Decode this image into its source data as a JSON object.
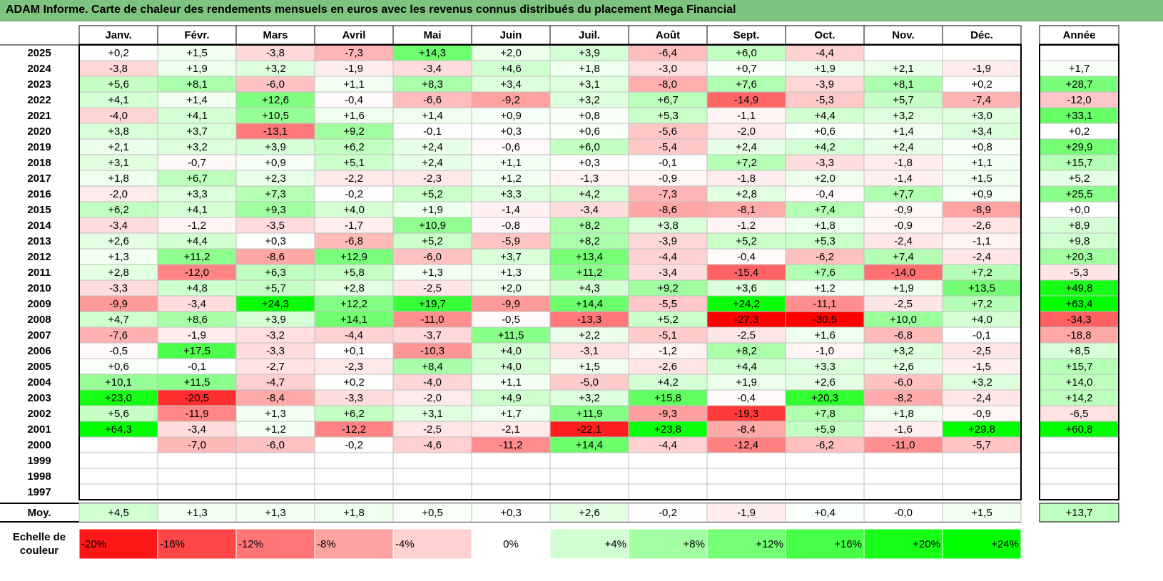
{
  "title": "ADAM Informe. Carte de chaleur des rendements mensuels en euros avec les revenus connus distribués du placement Mega Financial",
  "chart_data": {
    "type": "heatmap",
    "months": [
      "Janv.",
      "Févr.",
      "Mars",
      "Avril",
      "Mai",
      "Juin",
      "Juil.",
      "Août",
      "Sept.",
      "Oct.",
      "Nov.",
      "Déc."
    ],
    "year_header": "Année",
    "rows": [
      {
        "year": "2025",
        "values": [
          "+0,2",
          "+1,5",
          "-3,8",
          "-7,3",
          "+14,3",
          "+2,0",
          "+3,9",
          "-6,4",
          "+6,0",
          "-4,4",
          "",
          ""
        ],
        "annual": ""
      },
      {
        "year": "2024",
        "values": [
          "-3,8",
          "+1,9",
          "+3,2",
          "-1,9",
          "-3,4",
          "+4,6",
          "+1,8",
          "-3,0",
          "+0,7",
          "+1,9",
          "+2,1",
          "-1,9"
        ],
        "annual": "+1,7"
      },
      {
        "year": "2023",
        "values": [
          "+5,6",
          "+8,1",
          "-6,0",
          "+1,1",
          "+8,3",
          "+3,4",
          "+3,1",
          "-8,0",
          "+7,6",
          "-3,9",
          "+8,1",
          "+0,2"
        ],
        "annual": "+28,7"
      },
      {
        "year": "2022",
        "values": [
          "+4,1",
          "+1,4",
          "+12,6",
          "-0,4",
          "-6,6",
          "-9,2",
          "+3,2",
          "+6,7",
          "-14,9",
          "-5,3",
          "+5,7",
          "-7,4"
        ],
        "annual": "-12,0"
      },
      {
        "year": "2021",
        "values": [
          "-4,0",
          "+4,1",
          "+10,5",
          "+1,6",
          "+1,4",
          "+0,9",
          "+0,8",
          "+5,3",
          "-1,1",
          "+4,4",
          "+3,2",
          "+3,0"
        ],
        "annual": "+33,1"
      },
      {
        "year": "2020",
        "values": [
          "+3,8",
          "+3,7",
          "-13,1",
          "+9,2",
          "-0,1",
          "+0,3",
          "+0,6",
          "-5,6",
          "-2,0",
          "+0,6",
          "+1,4",
          "+3,4"
        ],
        "annual": "+0,2"
      },
      {
        "year": "2019",
        "values": [
          "+2,1",
          "+3,2",
          "+3,9",
          "+6,2",
          "+2,4",
          "-0,6",
          "+6,0",
          "-5,4",
          "+2,4",
          "+4,2",
          "+2,4",
          "+0,8"
        ],
        "annual": "+29,9"
      },
      {
        "year": "2018",
        "values": [
          "+3,1",
          "-0,7",
          "+0,9",
          "+5,1",
          "+2,4",
          "+1,1",
          "+0,3",
          "-0,1",
          "+7,2",
          "-3,3",
          "-1,8",
          "+1,1"
        ],
        "annual": "+15,7"
      },
      {
        "year": "2017",
        "values": [
          "+1,8",
          "+6,7",
          "+2,3",
          "-2,2",
          "-2,3",
          "+1,2",
          "-1,3",
          "-0,9",
          "-1,8",
          "+2,0",
          "-1,4",
          "+1,5"
        ],
        "annual": "+5,2"
      },
      {
        "year": "2016",
        "values": [
          "-2,0",
          "+3,3",
          "+7,3",
          "-0,2",
          "+5,2",
          "+3,3",
          "+4,2",
          "-7,3",
          "+2,8",
          "-0,4",
          "+7,7",
          "+0,9"
        ],
        "annual": "+25,5"
      },
      {
        "year": "2015",
        "values": [
          "+6,2",
          "+4,1",
          "+9,3",
          "+4,0",
          "+1,9",
          "-1,4",
          "-3,4",
          "-8,6",
          "-8,1",
          "+7,4",
          "-0,9",
          "-8,9"
        ],
        "annual": "+0,0"
      },
      {
        "year": "2014",
        "values": [
          "-3,4",
          "-1,2",
          "-3,5",
          "-1,7",
          "+10,9",
          "-0,8",
          "+8,2",
          "+3,8",
          "-1,2",
          "+1,8",
          "-0,9",
          "-2,6"
        ],
        "annual": "+8,9"
      },
      {
        "year": "2013",
        "values": [
          "+2,6",
          "+4,4",
          "+0,3",
          "-6,8",
          "+5,2",
          "-5,9",
          "+8,2",
          "-3,9",
          "+5,2",
          "+5,3",
          "-2,4",
          "-1,1"
        ],
        "annual": "+9,8"
      },
      {
        "year": "2012",
        "values": [
          "+1,3",
          "+11,2",
          "-8,6",
          "+12,9",
          "-6,0",
          "+3,7",
          "+13,4",
          "-4,4",
          "-0,4",
          "-6,2",
          "+7,4",
          "-2,4"
        ],
        "annual": "+20,3"
      },
      {
        "year": "2011",
        "values": [
          "+2,8",
          "-12,0",
          "+6,3",
          "+5,8",
          "+1,3",
          "+1,3",
          "+11,2",
          "-3,4",
          "-15,4",
          "+7,6",
          "-14,0",
          "+7,2"
        ],
        "annual": "-5,3"
      },
      {
        "year": "2010",
        "values": [
          "-3,3",
          "+4,8",
          "+5,7",
          "+2,8",
          "-2,5",
          "+2,0",
          "+4,3",
          "+9,2",
          "+3,6",
          "+1,2",
          "+1,9",
          "+13,5"
        ],
        "annual": "+49,8"
      },
      {
        "year": "2009",
        "values": [
          "-9,9",
          "-3,4",
          "+24,3",
          "+12,2",
          "+19,7",
          "-9,9",
          "+14,4",
          "-5,5",
          "+24,2",
          "-11,1",
          "-2,5",
          "+7,2"
        ],
        "annual": "+63,4"
      },
      {
        "year": "2008",
        "values": [
          "+4,7",
          "+8,6",
          "+3,9",
          "+14,1",
          "-11,0",
          "-0,5",
          "-13,3",
          "+5,2",
          "-27,3",
          "-30,5",
          "+10,0",
          "+4,0"
        ],
        "annual": "-34,3"
      },
      {
        "year": "2007",
        "values": [
          "-7,6",
          "-1,9",
          "-3,2",
          "-4,4",
          "-3,7",
          "+11,5",
          "+2,2",
          "-5,1",
          "-2,5",
          "+1,6",
          "-6,8",
          "-0,1"
        ],
        "annual": "-18,8"
      },
      {
        "year": "2006",
        "values": [
          "-0,5",
          "+17,5",
          "-3,3",
          "+0,1",
          "-10,3",
          "+4,0",
          "-3,1",
          "-1,2",
          "+8,2",
          "-1,0",
          "+3,2",
          "-2,5"
        ],
        "annual": "+8,5"
      },
      {
        "year": "2005",
        "values": [
          "+0,6",
          "-0,1",
          "-2,7",
          "-2,3",
          "+8,4",
          "+4,0",
          "+1,5",
          "-2,6",
          "+4,4",
          "+3,3",
          "+2,6",
          "-1,5"
        ],
        "annual": "+15,7"
      },
      {
        "year": "2004",
        "values": [
          "+10,1",
          "+11,5",
          "-4,7",
          "+0,2",
          "-4,0",
          "+1,1",
          "-5,0",
          "+4,2",
          "+1,9",
          "+2,6",
          "-6,0",
          "+3,2"
        ],
        "annual": "+14,0"
      },
      {
        "year": "2003",
        "values": [
          "+23,0",
          "-20,5",
          "-8,4",
          "-3,3",
          "-2,0",
          "+4,9",
          "+3,2",
          "+15,8",
          "-0,4",
          "+20,3",
          "-8,2",
          "-2,4"
        ],
        "annual": "+14,2"
      },
      {
        "year": "2002",
        "values": [
          "+5,6",
          "-11,9",
          "+1,3",
          "+6,2",
          "+3,1",
          "+1,7",
          "+11,9",
          "-9,3",
          "-19,3",
          "+7,8",
          "+1,8",
          "-0,9"
        ],
        "annual": "-6,5"
      },
      {
        "year": "2001",
        "values": [
          "+64,3",
          "-3,4",
          "+1,2",
          "-12,2",
          "-2,5",
          "-2,1",
          "-22,1",
          "+23,8",
          "-8,4",
          "+5,9",
          "-1,6",
          "+29,8"
        ],
        "annual": "+60,8"
      },
      {
        "year": "2000",
        "values": [
          "",
          "-7,0",
          "-6,0",
          "-0,2",
          "-4,6",
          "-11,2",
          "+14,4",
          "-4,4",
          "-12,4",
          "-6,2",
          "-11,0",
          "-5,7"
        ],
        "annual": ""
      },
      {
        "year": "1999",
        "values": [
          "",
          "",
          "",
          "",
          "",
          "",
          "",
          "",
          "",
          "",
          "",
          ""
        ],
        "annual": ""
      },
      {
        "year": "1998",
        "values": [
          "",
          "",
          "",
          "",
          "",
          "",
          "",
          "",
          "",
          "",
          "",
          ""
        ],
        "annual": ""
      },
      {
        "year": "1997",
        "values": [
          "",
          "",
          "",
          "",
          "",
          "",
          "",
          "",
          "",
          "",
          "",
          ""
        ],
        "annual": ""
      }
    ],
    "average": {
      "label": "Moy.",
      "values": [
        "+4,5",
        "+1,3",
        "+1,3",
        "+1,8",
        "+0,5",
        "+0,3",
        "+2,6",
        "-0,2",
        "-1,9",
        "+0,4",
        "-0,0",
        "+1,5"
      ],
      "annual": "+13,7"
    },
    "scale": {
      "label_line1": "Echelle de",
      "label_line2": "couleur",
      "steps": [
        {
          "label": "-20%",
          "value": -20
        },
        {
          "label": "-16%",
          "value": -16
        },
        {
          "label": "-12%",
          "value": -12
        },
        {
          "label": "-8%",
          "value": -8
        },
        {
          "label": "-4%",
          "value": -4
        },
        {
          "label": "0%",
          "value": 0
        },
        {
          "label": "+4%",
          "value": 4
        },
        {
          "label": "+8%",
          "value": 8
        },
        {
          "label": "+12%",
          "value": 12
        },
        {
          "label": "+16%",
          "value": 16
        },
        {
          "label": "+20%",
          "value": 20
        },
        {
          "label": "+24%",
          "value": 24
        }
      ]
    },
    "colors": {
      "negative": "#ff0000",
      "neutral": "#ffffff",
      "positive": "#00ff00",
      "title_bg": "#7ec47e"
    }
  }
}
